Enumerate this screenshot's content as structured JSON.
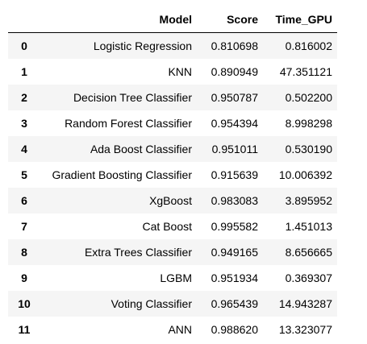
{
  "table": {
    "index_header": "",
    "columns": [
      "Model",
      "Score",
      "Time_GPU"
    ],
    "rows": [
      {
        "index": "0",
        "model": "Logistic Regression",
        "score": "0.810698",
        "time_gpu": "0.816002"
      },
      {
        "index": "1",
        "model": "KNN",
        "score": "0.890949",
        "time_gpu": "47.351121"
      },
      {
        "index": "2",
        "model": "Decision Tree Classifier",
        "score": "0.950787",
        "time_gpu": "0.502200"
      },
      {
        "index": "3",
        "model": "Random Forest Classifier",
        "score": "0.954394",
        "time_gpu": "8.998298"
      },
      {
        "index": "4",
        "model": "Ada Boost Classifier",
        "score": "0.951011",
        "time_gpu": "0.530190"
      },
      {
        "index": "5",
        "model": "Gradient Boosting Classifier",
        "score": "0.915639",
        "time_gpu": "10.006392"
      },
      {
        "index": "6",
        "model": "XgBoost",
        "score": "0.983083",
        "time_gpu": "3.895952"
      },
      {
        "index": "7",
        "model": "Cat Boost",
        "score": "0.995582",
        "time_gpu": "1.451013"
      },
      {
        "index": "8",
        "model": "Extra Trees Classifier",
        "score": "0.949165",
        "time_gpu": "8.656665"
      },
      {
        "index": "9",
        "model": "LGBM",
        "score": "0.951934",
        "time_gpu": "0.369307"
      },
      {
        "index": "10",
        "model": "Voting Classifier",
        "score": "0.965439",
        "time_gpu": "14.943287"
      },
      {
        "index": "11",
        "model": "ANN",
        "score": "0.988620",
        "time_gpu": "13.323077"
      }
    ]
  }
}
